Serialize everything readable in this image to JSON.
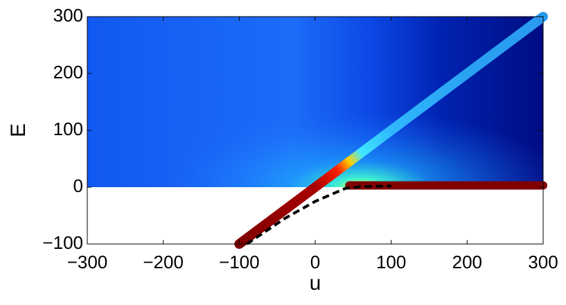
{
  "chart_data": {
    "type": "line",
    "xlabel": "u",
    "ylabel": "E",
    "xlim": [
      -300,
      300
    ],
    "ylim": [
      -100,
      300
    ],
    "xticks": [
      {
        "value": -300,
        "label": "−300"
      },
      {
        "value": -200,
        "label": "−200"
      },
      {
        "value": -100,
        "label": "−100"
      },
      0,
      100,
      200,
      300
    ],
    "yticks": [
      {
        "value": -100,
        "label": "−100"
      },
      0,
      100,
      200,
      300
    ],
    "series": [
      {
        "x": [
          -100,
          0,
          30,
          45,
          60,
          100,
          200,
          300
        ],
        "values": [
          -100,
          0,
          30,
          45,
          60,
          100,
          200,
          300
        ],
        "color": [
          "#800000",
          "#a80000",
          "#ff2000",
          "#ffd000",
          "#40e8ff",
          "#30b8ff",
          "#2aa2f2",
          "#2a9af0"
        ],
        "width": 14
      },
      {
        "x": [
          45,
          300
        ],
        "values": [
          3,
          3
        ],
        "color": "#800000",
        "width": 12
      },
      {
        "x": [
          -90,
          -40,
          0,
          40,
          60,
          100
        ],
        "values": [
          -100,
          -55,
          -25,
          -2,
          1,
          2
        ],
        "color": "#000000",
        "width": 4,
        "dashed": true
      }
    ]
  }
}
